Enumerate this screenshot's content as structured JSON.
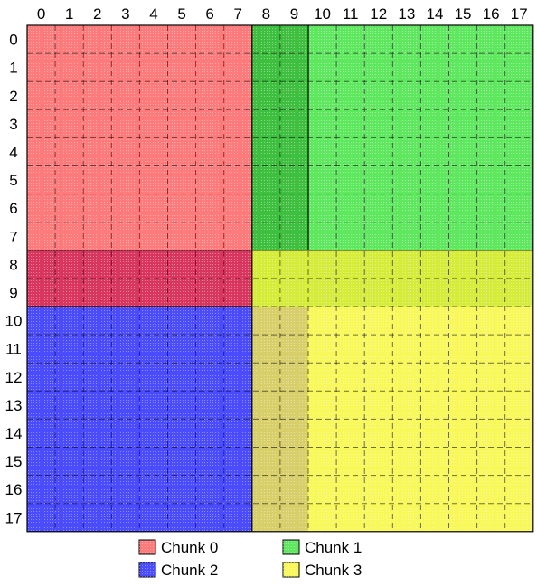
{
  "grid": {
    "size": 18,
    "column_labels": [
      "0",
      "1",
      "2",
      "3",
      "4",
      "5",
      "6",
      "7",
      "8",
      "9",
      "10",
      "11",
      "12",
      "13",
      "14",
      "15",
      "16",
      "17"
    ],
    "row_labels": [
      "0",
      "1",
      "2",
      "3",
      "4",
      "5",
      "6",
      "7",
      "8",
      "9",
      "10",
      "11",
      "12",
      "13",
      "14",
      "15",
      "16",
      "17"
    ]
  },
  "chunks": [
    {
      "id": 0,
      "label": "Chunk 0",
      "color": "#ff7a7a",
      "rows": [
        0,
        9
      ],
      "cols": [
        0,
        7
      ]
    },
    {
      "id": 1,
      "label": "Chunk 1",
      "color": "#5fe85f",
      "rows": [
        0,
        7
      ],
      "cols": [
        8,
        17
      ]
    },
    {
      "id": 2,
      "label": "Chunk 2",
      "color": "#4b4bff",
      "rows": [
        10,
        17
      ],
      "cols": [
        0,
        7
      ]
    },
    {
      "id": 3,
      "label": "Chunk 3",
      "color": "#f9f85a",
      "rows": [
        8,
        17
      ],
      "cols": [
        8,
        17
      ]
    }
  ],
  "overlaps": [
    {
      "name": "chunk-0-halo-band",
      "rows": [
        8,
        9
      ],
      "cols": [
        0,
        7
      ],
      "color": "#d8365e"
    },
    {
      "name": "chunk-1-halo-band",
      "rows": [
        0,
        7
      ],
      "cols": [
        8,
        9
      ],
      "color": "#3fbf3f"
    },
    {
      "name": "chunk-3-halo-band-rows",
      "rows": [
        8,
        9
      ],
      "cols": [
        8,
        17
      ],
      "color": "#d6ec3a"
    },
    {
      "name": "chunk-3-halo-band-cols",
      "rows": [
        10,
        17
      ],
      "cols": [
        8,
        9
      ],
      "color": "#d8cf6a"
    }
  ]
}
